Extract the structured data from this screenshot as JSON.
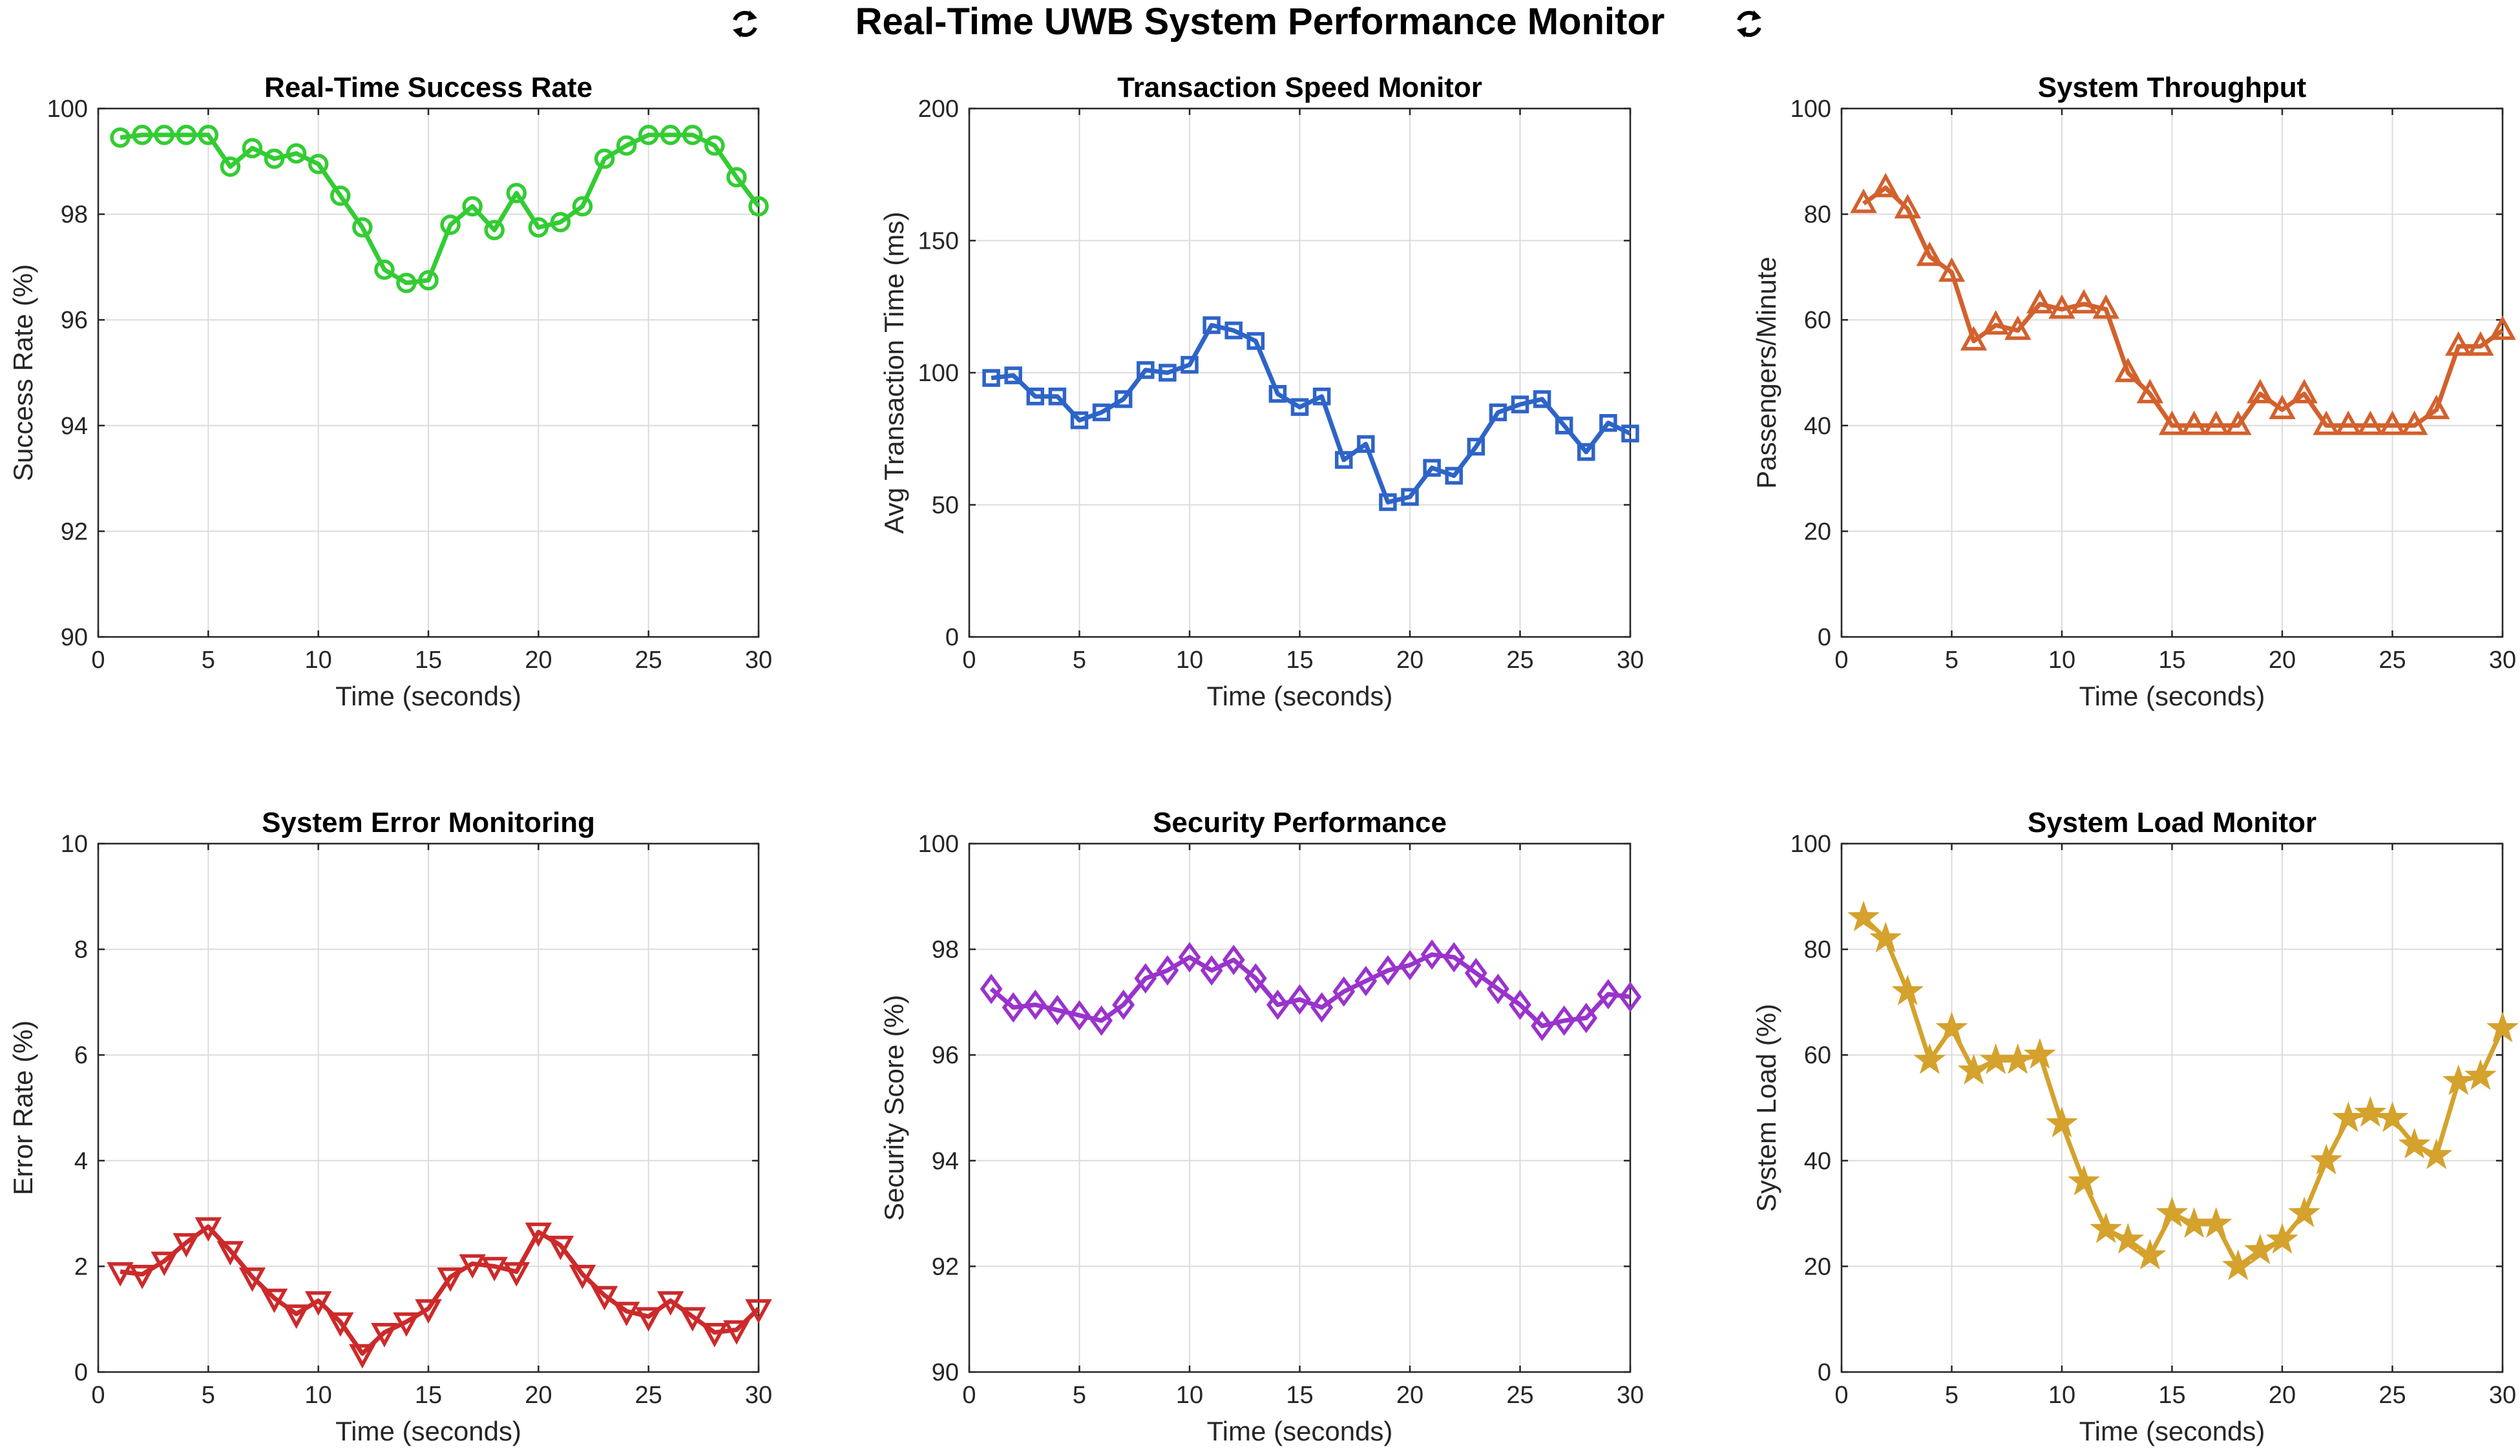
{
  "figure": {
    "title": "Real-Time UWB System Performance Monitor",
    "title_icon": "refresh-cycle-icon"
  },
  "chart_data": [
    {
      "type": "line",
      "title": "Real-Time Success Rate",
      "xlabel": "Time (seconds)",
      "ylabel": "Success Rate (%)",
      "xlim": [
        0,
        30
      ],
      "ylim": [
        90,
        100
      ],
      "xticks": [
        0,
        5,
        10,
        15,
        20,
        25,
        30
      ],
      "yticks": [
        90,
        92,
        94,
        96,
        98,
        100
      ],
      "grid": true,
      "color": "#33cc33",
      "marker": "circle",
      "x": [
        1,
        2,
        3,
        4,
        5,
        6,
        7,
        8,
        9,
        10,
        11,
        12,
        13,
        14,
        15,
        16,
        17,
        18,
        19,
        20,
        21,
        22,
        23,
        24,
        25,
        26,
        27,
        28,
        29,
        30
      ],
      "y": [
        99.45,
        99.5,
        99.5,
        99.5,
        99.5,
        98.9,
        99.25,
        99.05,
        99.15,
        98.95,
        98.35,
        97.75,
        96.95,
        96.7,
        96.75,
        97.8,
        98.15,
        97.7,
        98.4,
        97.75,
        97.85,
        98.15,
        99.05,
        99.3,
        99.5,
        99.5,
        99.5,
        99.3,
        98.7,
        98.15
      ]
    },
    {
      "type": "line",
      "title": "Transaction Speed Monitor",
      "xlabel": "Time (seconds)",
      "ylabel": "Avg Transaction Time (ms)",
      "xlim": [
        0,
        30
      ],
      "ylim": [
        0,
        200
      ],
      "xticks": [
        0,
        5,
        10,
        15,
        20,
        25,
        30
      ],
      "yticks": [
        0,
        50,
        100,
        150,
        200
      ],
      "grid": true,
      "color": "#2e64c8",
      "marker": "square",
      "x": [
        1,
        2,
        3,
        4,
        5,
        6,
        7,
        8,
        9,
        10,
        11,
        12,
        13,
        14,
        15,
        16,
        17,
        18,
        19,
        20,
        21,
        22,
        23,
        24,
        25,
        26,
        27,
        28,
        29,
        30
      ],
      "y": [
        98,
        99,
        91,
        91,
        82,
        85,
        90,
        101,
        100,
        103,
        118,
        116,
        112,
        92,
        87,
        91,
        67,
        73,
        51,
        53,
        64,
        61,
        72,
        85,
        88,
        90,
        80,
        70,
        81,
        77
      ]
    },
    {
      "type": "line",
      "title": "System Throughput",
      "xlabel": "Time (seconds)",
      "ylabel": "Passengers/Minute",
      "xlim": [
        0,
        30
      ],
      "ylim": [
        0,
        100
      ],
      "xticks": [
        0,
        5,
        10,
        15,
        20,
        25,
        30
      ],
      "yticks": [
        0,
        20,
        40,
        60,
        80,
        100
      ],
      "grid": true,
      "color": "#d2612d",
      "marker": "triangle-up",
      "x": [
        1,
        2,
        3,
        4,
        5,
        6,
        7,
        8,
        9,
        10,
        11,
        12,
        13,
        14,
        15,
        16,
        17,
        18,
        19,
        20,
        21,
        22,
        23,
        24,
        25,
        26,
        27,
        28,
        29,
        30
      ],
      "y": [
        82,
        85,
        81,
        72,
        69,
        56,
        59,
        58,
        63,
        62,
        63,
        62,
        50,
        46,
        40,
        40,
        40,
        40,
        46,
        43,
        46,
        40,
        40,
        40,
        40,
        40,
        43,
        55,
        55,
        58
      ]
    },
    {
      "type": "line",
      "title": "System Error Monitoring",
      "xlabel": "Time (seconds)",
      "ylabel": "Error Rate (%)",
      "xlim": [
        0,
        30
      ],
      "ylim": [
        0,
        10
      ],
      "xticks": [
        0,
        5,
        10,
        15,
        20,
        25,
        30
      ],
      "yticks": [
        0,
        2,
        4,
        6,
        8,
        10
      ],
      "grid": true,
      "color": "#cc2a2a",
      "marker": "triangle-down",
      "x": [
        1,
        2,
        3,
        4,
        5,
        6,
        7,
        8,
        9,
        10,
        11,
        12,
        13,
        14,
        15,
        16,
        17,
        18,
        19,
        20,
        21,
        22,
        23,
        24,
        25,
        26,
        27,
        28,
        29,
        30
      ],
      "y": [
        1.9,
        1.85,
        2.1,
        2.45,
        2.75,
        2.3,
        1.8,
        1.4,
        1.1,
        1.35,
        0.95,
        0.35,
        0.75,
        0.95,
        1.2,
        1.8,
        2.05,
        2.0,
        1.9,
        2.65,
        2.4,
        1.85,
        1.45,
        1.15,
        1.05,
        1.35,
        1.05,
        0.75,
        0.8,
        1.2
      ]
    },
    {
      "type": "line",
      "title": "Security Performance",
      "xlabel": "Time (seconds)",
      "ylabel": "Security Score (%)",
      "xlim": [
        0,
        30
      ],
      "ylim": [
        90,
        100
      ],
      "xticks": [
        0,
        5,
        10,
        15,
        20,
        25,
        30
      ],
      "yticks": [
        90,
        92,
        94,
        96,
        98,
        100
      ],
      "grid": true,
      "color": "#9933cc",
      "marker": "diamond",
      "x": [
        1,
        2,
        3,
        4,
        5,
        6,
        7,
        8,
        9,
        10,
        11,
        12,
        13,
        14,
        15,
        16,
        17,
        18,
        19,
        20,
        21,
        22,
        23,
        24,
        25,
        26,
        27,
        28,
        29,
        30
      ],
      "y": [
        97.25,
        96.9,
        96.95,
        96.85,
        96.75,
        96.65,
        96.95,
        97.45,
        97.6,
        97.85,
        97.6,
        97.8,
        97.45,
        96.95,
        97.05,
        96.9,
        97.2,
        97.4,
        97.6,
        97.7,
        97.9,
        97.85,
        97.55,
        97.25,
        96.95,
        96.55,
        96.65,
        96.7,
        97.15,
        97.1
      ]
    },
    {
      "type": "line",
      "title": "System Load Monitor",
      "xlabel": "Time (seconds)",
      "ylabel": "System Load (%)",
      "xlim": [
        0,
        30
      ],
      "ylim": [
        0,
        100
      ],
      "xticks": [
        0,
        5,
        10,
        15,
        20,
        25,
        30
      ],
      "yticks": [
        0,
        20,
        40,
        60,
        80,
        100
      ],
      "grid": true,
      "color": "#d4a22d",
      "marker": "star",
      "x": [
        1,
        2,
        3,
        4,
        5,
        6,
        7,
        8,
        9,
        10,
        11,
        12,
        13,
        14,
        15,
        16,
        17,
        18,
        19,
        20,
        21,
        22,
        23,
        24,
        25,
        26,
        27,
        28,
        29,
        30
      ],
      "y": [
        86,
        82,
        72,
        59,
        65,
        57,
        59,
        59,
        60,
        47,
        36,
        27,
        25,
        22,
        30,
        28,
        28,
        20,
        23,
        25,
        30,
        40,
        48,
        49,
        48,
        43,
        41,
        55,
        56,
        65
      ]
    }
  ]
}
